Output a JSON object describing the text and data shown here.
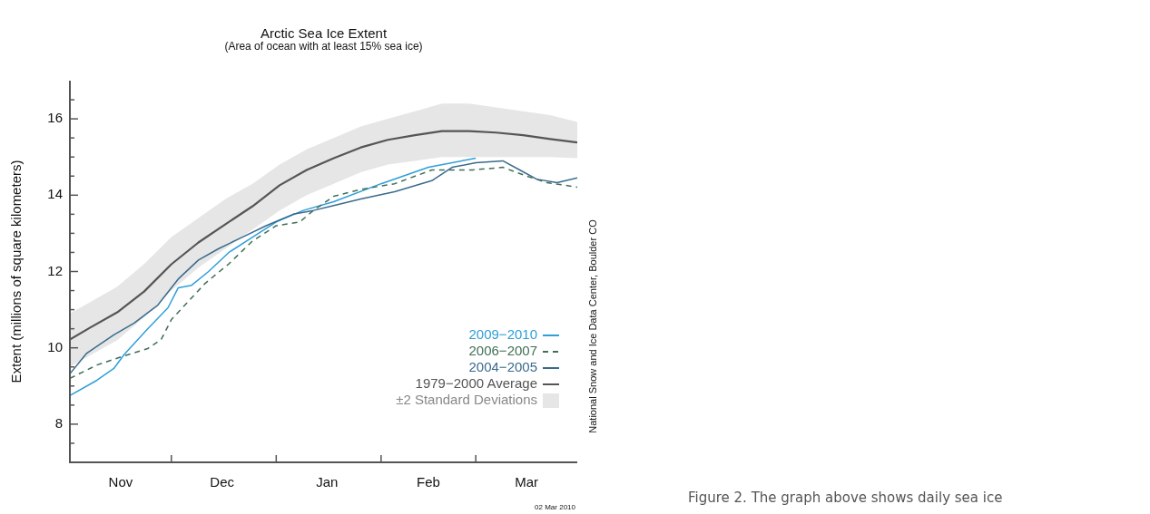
{
  "chart_data": {
    "type": "line",
    "title": "Arctic Sea Ice Extent",
    "subtitle": "(Area of ocean with at least 15% sea ice)",
    "ylabel": "Extent (millions of square kilometers)",
    "xlim": [
      "2009-11-01",
      "2010-03-31"
    ],
    "xticks": [
      {
        "value": "2009-11-16",
        "label": "Nov"
      },
      {
        "value": "2009-12-01",
        "label": null
      },
      {
        "value": "2009-12-16",
        "label": "Dec"
      },
      {
        "value": "2010-01-01",
        "label": null
      },
      {
        "value": "2010-01-16",
        "label": "Jan"
      },
      {
        "value": "2010-02-01",
        "label": null
      },
      {
        "value": "2010-02-15",
        "label": "Feb"
      },
      {
        "value": "2010-03-01",
        "label": null
      },
      {
        "value": "2010-03-16",
        "label": "Mar"
      }
    ],
    "ylim": [
      7,
      17
    ],
    "yticks": [
      {
        "value": 7.5,
        "label": null
      },
      8,
      {
        "value": 8.5,
        "label": null
      },
      {
        "value": 9,
        "label": null
      },
      {
        "value": 9.5,
        "label": null
      },
      10,
      {
        "value": 10.5,
        "label": null
      },
      {
        "value": 11,
        "label": null
      },
      {
        "value": 11.5,
        "label": null
      },
      12,
      {
        "value": 12.5,
        "label": null
      },
      {
        "value": 13,
        "label": null
      },
      {
        "value": 13.5,
        "label": null
      },
      14,
      {
        "value": 14.5,
        "label": null
      },
      {
        "value": 15,
        "label": null
      },
      {
        "value": 15.5,
        "label": null
      },
      16,
      {
        "value": 16.5,
        "label": null
      }
    ],
    "grid": false,
    "legend": "bottom right",
    "marker": "none",
    "series": [
      {
        "name": "2009−2010",
        "color": "#2f9fd8",
        "x": [
          "2009-11-01",
          "2009-11-09",
          "2009-11-14",
          "2009-11-17",
          "2009-11-24",
          "2009-11-30",
          "2009-12-03",
          "2009-12-07",
          "2009-12-12",
          "2009-12-18",
          "2009-12-25",
          "2010-01-01",
          "2010-01-09",
          "2010-01-18",
          "2010-02-01",
          "2010-02-15",
          "2010-03-01"
        ],
        "values": [
          8.75,
          9.15,
          9.46,
          9.82,
          10.5,
          11.05,
          11.57,
          11.64,
          12.0,
          12.5,
          12.9,
          13.3,
          13.6,
          13.83,
          14.3,
          14.73,
          14.97
        ]
      },
      {
        "name": "2006−2007",
        "color": "#3f6f55",
        "line_style": "dashed",
        "x": [
          "2009-11-01",
          "2009-11-09",
          "2009-11-17",
          "2009-11-24",
          "2009-11-28",
          "2009-12-01",
          "2009-12-05",
          "2009-12-11",
          "2009-12-18",
          "2009-12-25",
          "2010-01-01",
          "2010-01-08",
          "2010-01-12",
          "2010-01-18",
          "2010-01-26",
          "2010-02-05",
          "2010-02-16",
          "2010-02-28",
          "2010-03-09",
          "2010-03-16",
          "2010-03-22",
          "2010-03-31"
        ],
        "values": [
          9.2,
          9.55,
          9.79,
          9.98,
          10.22,
          10.74,
          11.12,
          11.69,
          12.2,
          12.8,
          13.2,
          13.3,
          13.6,
          13.97,
          14.15,
          14.3,
          14.66,
          14.66,
          14.73,
          14.5,
          14.33,
          14.21
        ]
      },
      {
        "name": "2004−2005",
        "color": "#3a6b8c",
        "x": [
          "2009-11-01",
          "2009-11-06",
          "2009-11-14",
          "2009-11-20",
          "2009-11-27",
          "2009-12-03",
          "2009-12-09",
          "2009-12-15",
          "2009-12-22",
          "2009-12-29",
          "2010-01-06",
          "2010-01-12",
          "2010-01-18",
          "2010-01-26",
          "2010-02-05",
          "2010-02-16",
          "2010-02-22",
          "2010-03-01",
          "2010-03-09",
          "2010-03-14",
          "2010-03-19",
          "2010-03-25",
          "2010-03-31"
        ],
        "values": [
          9.32,
          9.86,
          10.34,
          10.65,
          11.12,
          11.8,
          12.3,
          12.6,
          12.9,
          13.2,
          13.5,
          13.6,
          13.73,
          13.9,
          14.09,
          14.38,
          14.73,
          14.85,
          14.9,
          14.66,
          14.42,
          14.33,
          14.45
        ]
      },
      {
        "name": "1979−2000 Average",
        "color": "#555555",
        "x": [
          "2009-11-01",
          "2009-11-07",
          "2009-11-15",
          "2009-11-23",
          "2009-12-01",
          "2009-12-09",
          "2009-12-17",
          "2009-12-25",
          "2010-01-02",
          "2010-01-10",
          "2010-01-18",
          "2010-01-26",
          "2010-02-03",
          "2010-02-11",
          "2010-02-19",
          "2010-02-27",
          "2010-03-07",
          "2010-03-15",
          "2010-03-23",
          "2010-03-31"
        ],
        "values": [
          10.22,
          10.53,
          10.93,
          11.48,
          12.19,
          12.76,
          13.24,
          13.71,
          14.26,
          14.66,
          14.97,
          15.25,
          15.45,
          15.57,
          15.68,
          15.68,
          15.64,
          15.57,
          15.47,
          15.38
        ],
        "lower": [
          9.5,
          9.8,
          10.2,
          10.8,
          11.5,
          12.1,
          12.6,
          13.1,
          13.6,
          14.0,
          14.3,
          14.6,
          14.8,
          14.9,
          15.0,
          15.0,
          15.0,
          15.0,
          15.0,
          14.97
        ],
        "upper": [
          10.9,
          11.2,
          11.6,
          12.2,
          12.9,
          13.4,
          13.9,
          14.3,
          14.8,
          15.2,
          15.5,
          15.8,
          16.0,
          16.2,
          16.4,
          16.4,
          16.3,
          16.2,
          16.1,
          15.92
        ]
      }
    ],
    "annotations": [
      "National Snow and Ice Data Center, Boulder CO",
      "02 Mar 2010",
      "Figure 2. The graph above shows daily sea ice",
      "±2 Standard Deviations"
    ]
  }
}
